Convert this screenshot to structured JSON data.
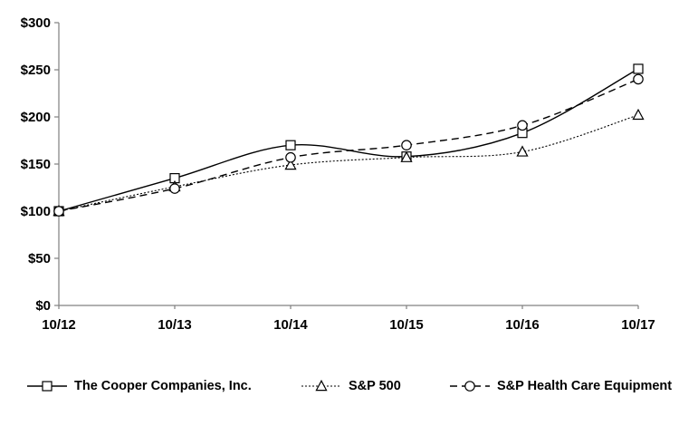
{
  "chart_data": {
    "type": "line",
    "title": "",
    "xlabel": "",
    "ylabel": "",
    "categories": [
      "10/12",
      "10/13",
      "10/14",
      "10/15",
      "10/16",
      "10/17"
    ],
    "series": [
      {
        "name": "The Cooper Companies, Inc.",
        "marker": "square",
        "line_style": "solid",
        "values": [
          100,
          135,
          170,
          158,
          183,
          251
        ]
      },
      {
        "name": "S&P 500",
        "marker": "triangle",
        "line_style": "dotted",
        "values": [
          100,
          126,
          149,
          157,
          163,
          202
        ]
      },
      {
        "name": "S&P Health Care Equipment",
        "marker": "circle",
        "line_style": "dashed",
        "values": [
          100,
          124,
          157,
          170,
          191,
          240
        ]
      }
    ],
    "ylim": [
      0,
      300
    ],
    "ytick_step": 50,
    "ytick_labels": [
      "$0",
      "$50",
      "$100",
      "$150",
      "$200",
      "$250",
      "$300"
    ],
    "grid": false,
    "smoothed": true,
    "legend_position": "bottom",
    "colors": {
      "series_line": "#000000",
      "marker_fill": "#ffffff",
      "axis_line": "#808080",
      "text": "#000000",
      "background": "#ffffff"
    }
  }
}
